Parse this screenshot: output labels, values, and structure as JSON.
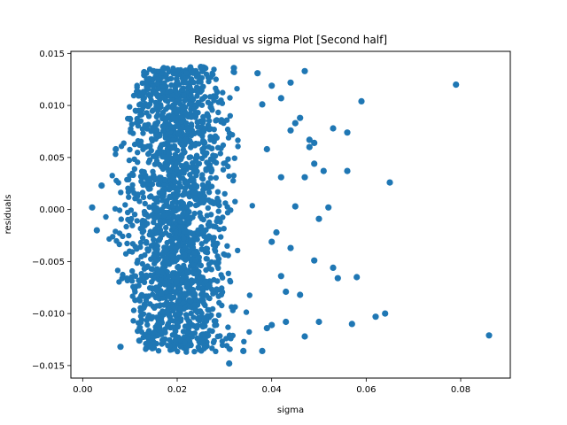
{
  "chart_data": {
    "type": "scatter",
    "title": "Residual vs sigma Plot [Second half]",
    "xlabel": "sigma",
    "ylabel": "residuals",
    "xlim": [
      -0.0025,
      0.0905
    ],
    "ylim": [
      -0.0162,
      0.0152
    ],
    "xticks": [
      0.0,
      0.02,
      0.04,
      0.06,
      0.08
    ],
    "xtick_labels": [
      "0.00",
      "0.02",
      "0.04",
      "0.06",
      "0.08"
    ],
    "yticks": [
      -0.015,
      -0.01,
      -0.005,
      0.0,
      0.005,
      0.01,
      0.015
    ],
    "ytick_labels": [
      "−0.015",
      "−0.010",
      "−0.005",
      "0.000",
      "0.005",
      "0.010",
      "0.015"
    ],
    "grid": false,
    "legend": "none",
    "marker_color": "#1f77b4",
    "dense_cloud": {
      "description_values": "dense core of points",
      "sigma_range": [
        0.002,
        0.036
      ],
      "residual_range": [
        -0.0145,
        0.0138
      ],
      "peak_sigma": 0.02
    },
    "series": [
      {
        "name": "residuals",
        "points": [
          [
            0.079,
            0.012
          ],
          [
            0.059,
            0.0104
          ],
          [
            0.047,
            0.0133
          ],
          [
            0.065,
            0.0026
          ],
          [
            0.086,
            -0.0121
          ],
          [
            0.057,
            -0.011
          ],
          [
            0.064,
            -0.01
          ],
          [
            0.062,
            -0.0103
          ],
          [
            0.058,
            -0.0065
          ],
          [
            0.053,
            0.0078
          ],
          [
            0.056,
            0.0074
          ],
          [
            0.052,
            0.0002
          ],
          [
            0.053,
            -0.0056
          ],
          [
            0.054,
            -0.0066
          ],
          [
            0.049,
            0.0044
          ],
          [
            0.051,
            0.0037
          ],
          [
            0.056,
            0.0037
          ],
          [
            0.05,
            -0.0108
          ],
          [
            0.047,
            -0.0122
          ],
          [
            0.049,
            -0.0049
          ],
          [
            0.046,
            0.0088
          ],
          [
            0.045,
            0.0083
          ],
          [
            0.048,
            0.0067
          ],
          [
            0.047,
            0.0031
          ],
          [
            0.045,
            0.0003
          ],
          [
            0.044,
            -0.0037
          ],
          [
            0.046,
            -0.0082
          ],
          [
            0.043,
            -0.0108
          ],
          [
            0.049,
            0.0064
          ],
          [
            0.048,
            0.006
          ],
          [
            0.05,
            -0.0009
          ],
          [
            0.044,
            0.0122
          ],
          [
            0.042,
            0.0107
          ],
          [
            0.044,
            0.0076
          ],
          [
            0.042,
            0.0031
          ],
          [
            0.042,
            -0.0064
          ],
          [
            0.043,
            -0.0079
          ],
          [
            0.041,
            -0.0022
          ],
          [
            0.008,
            -0.0132
          ],
          [
            0.002,
            0.0002
          ],
          [
            0.003,
            -0.002
          ],
          [
            0.004,
            0.0023
          ],
          [
            0.007,
            0.0058
          ],
          [
            0.01,
            0.0087
          ],
          [
            0.013,
            0.0132
          ],
          [
            0.012,
            -0.0126
          ],
          [
            0.015,
            0.0133
          ],
          [
            0.017,
            0.0135
          ],
          [
            0.025,
            0.0137
          ],
          [
            0.032,
            0.0136
          ],
          [
            0.031,
            -0.0148
          ],
          [
            0.034,
            -0.0136
          ],
          [
            0.038,
            -0.0136
          ],
          [
            0.037,
            0.0131
          ],
          [
            0.04,
            0.0119
          ],
          [
            0.038,
            0.0101
          ],
          [
            0.039,
            -0.0114
          ],
          [
            0.04,
            -0.0111
          ],
          [
            0.039,
            0.0058
          ],
          [
            0.04,
            -0.0031
          ]
        ]
      }
    ]
  }
}
